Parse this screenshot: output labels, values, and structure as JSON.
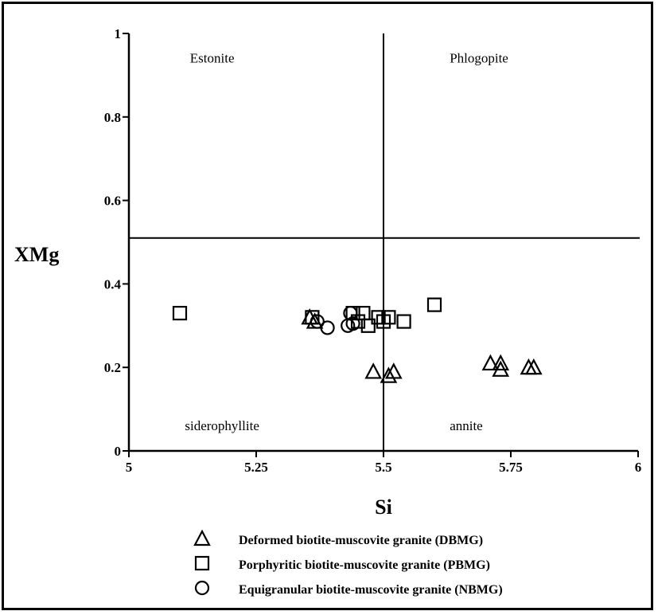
{
  "chart_data": {
    "type": "scatter",
    "title": "",
    "xlabel": "Si",
    "ylabel": "XMg",
    "xlim": [
      5,
      6
    ],
    "ylim": [
      0,
      1
    ],
    "x_ticks": [
      5,
      5.25,
      5.5,
      5.75,
      6
    ],
    "x_tick_labels": [
      "5",
      "5.25",
      "5.5",
      "5.75",
      "6"
    ],
    "y_ticks": [
      0,
      0.2,
      0.4,
      0.6,
      0.8,
      1
    ],
    "y_tick_labels": [
      "0",
      "0.2",
      "0.4",
      "0.6",
      "0.8",
      "1"
    ],
    "grid": false,
    "divider_lines": {
      "x": 5.5,
      "y": 0.51
    },
    "region_labels": [
      {
        "text": "Estonite",
        "x": 5.12,
        "y": 0.93
      },
      {
        "text": "Phlogopite",
        "x": 5.63,
        "y": 0.93
      },
      {
        "text": "siderophyllite",
        "x": 5.11,
        "y": 0.05
      },
      {
        "text": "annite",
        "x": 5.63,
        "y": 0.05
      }
    ],
    "legend_position": "bottom",
    "series": [
      {
        "name": "Deformed biotite-muscovite granite (DBMG)",
        "marker": "triangle",
        "points": [
          [
            5.355,
            0.32
          ],
          [
            5.365,
            0.31
          ],
          [
            5.48,
            0.19
          ],
          [
            5.51,
            0.18
          ],
          [
            5.52,
            0.19
          ],
          [
            5.71,
            0.21
          ],
          [
            5.73,
            0.21
          ],
          [
            5.73,
            0.195
          ],
          [
            5.785,
            0.2
          ],
          [
            5.795,
            0.2
          ]
        ]
      },
      {
        "name": "Porphyritic biotite-muscovite granite (PBMG)",
        "marker": "square",
        "points": [
          [
            5.1,
            0.33
          ],
          [
            5.36,
            0.32
          ],
          [
            5.44,
            0.33
          ],
          [
            5.45,
            0.31
          ],
          [
            5.46,
            0.33
          ],
          [
            5.47,
            0.3
          ],
          [
            5.49,
            0.32
          ],
          [
            5.5,
            0.31
          ],
          [
            5.51,
            0.32
          ],
          [
            5.54,
            0.31
          ],
          [
            5.6,
            0.35
          ]
        ]
      },
      {
        "name": "Equigranular biotite-muscovite granite (NBMG)",
        "marker": "circle",
        "points": [
          [
            5.37,
            0.31
          ],
          [
            5.39,
            0.295
          ],
          [
            5.43,
            0.3
          ],
          [
            5.435,
            0.33
          ],
          [
            5.44,
            0.305
          ]
        ]
      }
    ]
  }
}
